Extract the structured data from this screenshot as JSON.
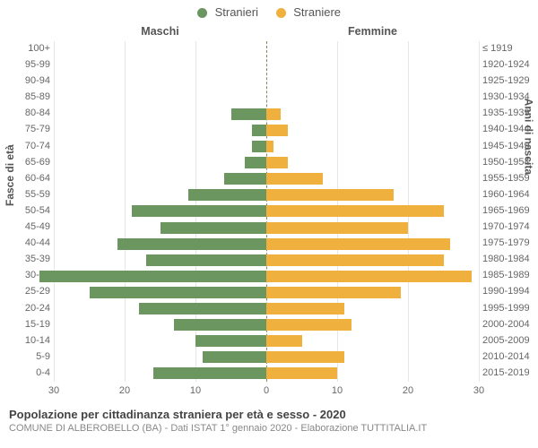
{
  "legend": {
    "male_label": "Stranieri",
    "female_label": "Straniere"
  },
  "colors": {
    "male": "#6b9660",
    "female": "#f0b03e",
    "grid": "#e6e6e6",
    "center": "#888855"
  },
  "half_titles": {
    "left": "Maschi",
    "right": "Femmine"
  },
  "y_axis": {
    "left_title": "Fasce di età",
    "right_title": "Anni di nascita"
  },
  "x_axis": {
    "max": 30,
    "ticks_left": [
      30,
      20,
      10,
      0
    ],
    "ticks_right": [
      0,
      10,
      20,
      30
    ]
  },
  "rows": [
    {
      "age": "100+",
      "birth": "≤ 1919",
      "m": 0,
      "f": 0
    },
    {
      "age": "95-99",
      "birth": "1920-1924",
      "m": 0,
      "f": 0
    },
    {
      "age": "90-94",
      "birth": "1925-1929",
      "m": 0,
      "f": 0
    },
    {
      "age": "85-89",
      "birth": "1930-1934",
      "m": 0,
      "f": 0
    },
    {
      "age": "80-84",
      "birth": "1935-1939",
      "m": 5,
      "f": 2
    },
    {
      "age": "75-79",
      "birth": "1940-1944",
      "m": 2,
      "f": 3
    },
    {
      "age": "70-74",
      "birth": "1945-1949",
      "m": 2,
      "f": 1
    },
    {
      "age": "65-69",
      "birth": "1950-1954",
      "m": 3,
      "f": 3
    },
    {
      "age": "60-64",
      "birth": "1955-1959",
      "m": 6,
      "f": 8
    },
    {
      "age": "55-59",
      "birth": "1960-1964",
      "m": 11,
      "f": 18
    },
    {
      "age": "50-54",
      "birth": "1965-1969",
      "m": 19,
      "f": 25
    },
    {
      "age": "45-49",
      "birth": "1970-1974",
      "m": 15,
      "f": 20
    },
    {
      "age": "40-44",
      "birth": "1975-1979",
      "m": 21,
      "f": 26
    },
    {
      "age": "35-39",
      "birth": "1980-1984",
      "m": 17,
      "f": 25
    },
    {
      "age": "30-34",
      "birth": "1985-1989",
      "m": 32,
      "f": 29
    },
    {
      "age": "25-29",
      "birth": "1990-1994",
      "m": 25,
      "f": 19
    },
    {
      "age": "20-24",
      "birth": "1995-1999",
      "m": 18,
      "f": 11
    },
    {
      "age": "15-19",
      "birth": "2000-2004",
      "m": 13,
      "f": 12
    },
    {
      "age": "10-14",
      "birth": "2005-2009",
      "m": 10,
      "f": 5
    },
    {
      "age": "5-9",
      "birth": "2010-2014",
      "m": 9,
      "f": 11
    },
    {
      "age": "0-4",
      "birth": "2015-2019",
      "m": 16,
      "f": 10
    }
  ],
  "caption": {
    "title": "Popolazione per cittadinanza straniera per età e sesso - 2020",
    "subtitle": "COMUNE DI ALBEROBELLO (BA) - Dati ISTAT 1° gennaio 2020 - Elaborazione TUTTITALIA.IT"
  }
}
